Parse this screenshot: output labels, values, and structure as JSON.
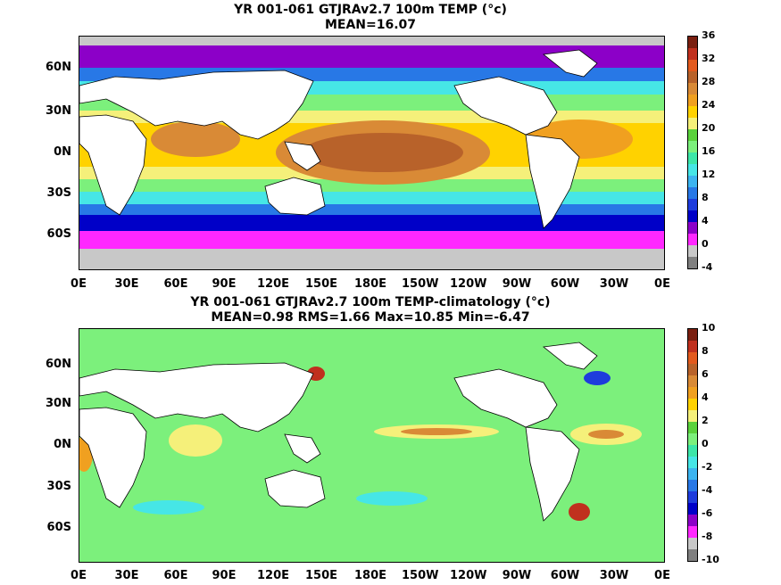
{
  "panels": [
    {
      "title_line1": "YR 001-061 GTJRAv2.7 100m TEMP (°c)",
      "title_line2": "MEAN=16.07",
      "lat_labels": [
        "60N",
        "30N",
        "0N",
        "30S",
        "60S"
      ],
      "lon_labels": [
        "0E",
        "30E",
        "60E",
        "90E",
        "120E",
        "150E",
        "180E",
        "150W",
        "120W",
        "90W",
        "60W",
        "30W",
        "0E"
      ],
      "colorbar_ticks": [
        "36",
        "32",
        "28",
        "24",
        "20",
        "16",
        "12",
        "8",
        "4",
        "0",
        "-4"
      ],
      "colorbar_colors": [
        "#7a1f10",
        "#c0301e",
        "#e25a1e",
        "#b8622a",
        "#d98a36",
        "#f0a020",
        "#ffd200",
        "#f5f07a",
        "#5ad23c",
        "#7cf07c",
        "#3ce6a8",
        "#46e6e6",
        "#3cb4f0",
        "#2878e6",
        "#1e3cdc",
        "#0000c8",
        "#8c00c8",
        "#ff28ff",
        "#c8c8c8",
        "#808080"
      ]
    },
    {
      "title_line1": "YR 001-061 GTJRAv2.7 100m TEMP-climatology (°c)",
      "title_line2": "MEAN=0.98   RMS=1.66   Max=10.85   Min=-6.47",
      "lat_labels": [
        "60N",
        "30N",
        "0N",
        "30S",
        "60S"
      ],
      "lon_labels": [
        "0E",
        "30E",
        "60E",
        "90E",
        "120E",
        "150E",
        "180E",
        "150W",
        "120W",
        "90W",
        "60W",
        "30W",
        "0E"
      ],
      "colorbar_ticks": [
        "10",
        "8",
        "6",
        "4",
        "2",
        "0",
        "-2",
        "-4",
        "-6",
        "-8",
        "-10"
      ],
      "colorbar_colors": [
        "#7a1f10",
        "#c0301e",
        "#e25a1e",
        "#b8622a",
        "#d98a36",
        "#f0a020",
        "#ffd200",
        "#f5f07a",
        "#5ad23c",
        "#7cf07c",
        "#3ce6a8",
        "#46e6e6",
        "#3cb4f0",
        "#2878e6",
        "#1e3cdc",
        "#0000c8",
        "#8c00c8",
        "#ff28ff",
        "#c8c8c8",
        "#808080"
      ]
    }
  ]
}
